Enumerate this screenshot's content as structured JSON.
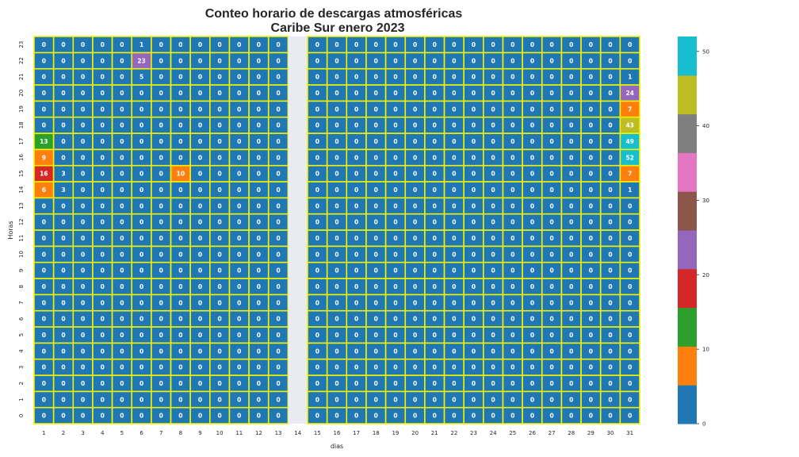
{
  "chart_data": {
    "type": "heatmap",
    "title_line1": "Conteo horario de descargas atmosféricas",
    "title_line2": "Caribe Sur enero 2023",
    "xlabel": "dias",
    "ylabel": "Horas",
    "x": [
      "1",
      "2",
      "3",
      "4",
      "5",
      "6",
      "7",
      "8",
      "9",
      "10",
      "11",
      "12",
      "13",
      "14",
      "15",
      "16",
      "17",
      "18",
      "19",
      "20",
      "21",
      "22",
      "23",
      "24",
      "25",
      "26",
      "27",
      "28",
      "29",
      "30",
      "31"
    ],
    "y": [
      "0",
      "1",
      "2",
      "3",
      "4",
      "5",
      "6",
      "7",
      "8",
      "9",
      "10",
      "11",
      "12",
      "13",
      "14",
      "15",
      "16",
      "17",
      "18",
      "19",
      "20",
      "21",
      "22",
      "23"
    ],
    "missing_day": "14",
    "nonzero_cells": [
      {
        "day": "6",
        "hour": "23",
        "value": 1
      },
      {
        "day": "6",
        "hour": "22",
        "value": 23
      },
      {
        "day": "6",
        "hour": "21",
        "value": 5
      },
      {
        "day": "1",
        "hour": "17",
        "value": 13
      },
      {
        "day": "1",
        "hour": "16",
        "value": 9
      },
      {
        "day": "1",
        "hour": "15",
        "value": 16
      },
      {
        "day": "2",
        "hour": "15",
        "value": 3
      },
      {
        "day": "8",
        "hour": "15",
        "value": 10
      },
      {
        "day": "1",
        "hour": "14",
        "value": 6
      },
      {
        "day": "2",
        "hour": "14",
        "value": 3
      },
      {
        "day": "31",
        "hour": "21",
        "value": 1
      },
      {
        "day": "31",
        "hour": "20",
        "value": 24
      },
      {
        "day": "31",
        "hour": "19",
        "value": 7
      },
      {
        "day": "31",
        "hour": "18",
        "value": 43
      },
      {
        "day": "31",
        "hour": "17",
        "value": 49
      },
      {
        "day": "31",
        "hour": "16",
        "value": 52
      },
      {
        "day": "31",
        "hour": "15",
        "value": 7
      },
      {
        "day": "31",
        "hour": "14",
        "value": 1
      }
    ],
    "default_value": 0,
    "vmin": 0,
    "vmax": 52,
    "colorbar_ticks": [
      "0",
      "10",
      "20",
      "30",
      "40",
      "50"
    ],
    "palette": [
      "#1f77b4",
      "#ff7f0e",
      "#2ca02c",
      "#d62728",
      "#9467bd",
      "#8c564b",
      "#e377c2",
      "#7f7f7f",
      "#bcbd22",
      "#17becf"
    ],
    "grid_line_color": "#f2f200",
    "missing_color": "#eaeaf2"
  }
}
